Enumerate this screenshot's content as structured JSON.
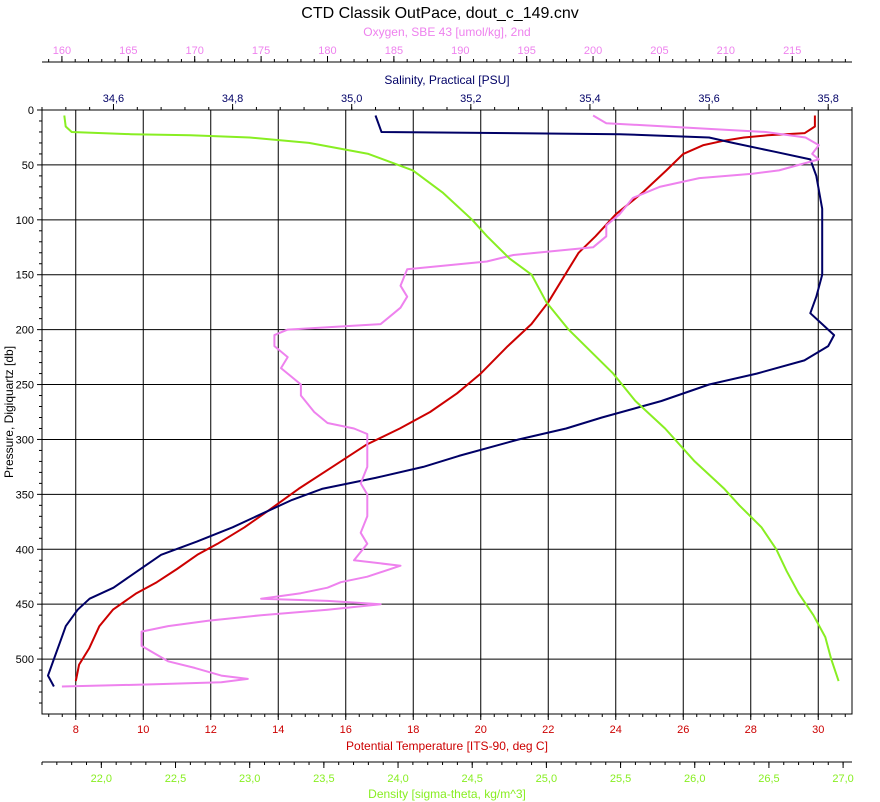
{
  "chart_data": {
    "type": "line",
    "title": "CTD Classik OutPace, dout_c_149.cnv",
    "y_axis": {
      "label": "Pressure, Digiquartz [db]",
      "range": [
        0,
        550
      ],
      "inverted": true,
      "ticks": [
        0,
        50,
        100,
        150,
        200,
        250,
        300,
        350,
        400,
        450,
        500
      ],
      "tick_labels": [
        "0",
        "50",
        "100",
        "150",
        "200",
        "250",
        "300",
        "350",
        "400",
        "450",
        "500"
      ]
    },
    "x_axes": {
      "oxygen": {
        "label": "Oxygen, SBE 43 [umol/kg], 2nd",
        "position": "top",
        "range": [
          158.5,
          219.5
        ],
        "ticks": [
          160,
          165,
          170,
          175,
          180,
          185,
          190,
          195,
          200,
          205,
          210,
          215
        ],
        "tick_labels": [
          "160",
          "165",
          "170",
          "175",
          "180",
          "185",
          "190",
          "195",
          "200",
          "205",
          "210",
          "215"
        ],
        "color": "#ee82ee"
      },
      "salinity": {
        "label": "Salinity, Practical [PSU]",
        "position": "top",
        "range": [
          34.48,
          35.84
        ],
        "ticks": [
          34.6,
          34.8,
          35.0,
          35.2,
          35.4,
          35.6,
          35.8
        ],
        "tick_labels": [
          "34,6",
          "34,8",
          "35,0",
          "35,2",
          "35,4",
          "35,6",
          "35,8"
        ],
        "color": "#000066"
      },
      "temperature": {
        "label": "Potential Temperature [ITS-90, deg C]",
        "position": "bottom",
        "range": [
          7,
          31
        ],
        "ticks": [
          8,
          10,
          12,
          14,
          16,
          18,
          20,
          22,
          24,
          26,
          28,
          30
        ],
        "tick_labels": [
          "8",
          "10",
          "12",
          "14",
          "16",
          "18",
          "20",
          "22",
          "24",
          "26",
          "28",
          "30"
        ],
        "color": "#cc0000"
      },
      "density": {
        "label": "Density [sigma-theta, kg/m^3]",
        "position": "bottom",
        "range": [
          21.6,
          27.06
        ],
        "ticks": [
          22.0,
          22.5,
          23.0,
          23.5,
          24.0,
          24.5,
          25.0,
          25.5,
          26.0,
          26.5,
          27.0
        ],
        "tick_labels": [
          "22,0",
          "22,5",
          "23,0",
          "23,5",
          "24,0",
          "24,5",
          "25,0",
          "25,5",
          "26,0",
          "26,5",
          "27,0"
        ],
        "color": "#88ee22"
      }
    },
    "grid": true,
    "series": [
      {
        "axis": "temperature",
        "color": "#cc0000",
        "points": [
          [
            29.9,
            5
          ],
          [
            29.9,
            15
          ],
          [
            29.6,
            21
          ],
          [
            28.5,
            23
          ],
          [
            27.8,
            25
          ],
          [
            27.2,
            28
          ],
          [
            26.6,
            32
          ],
          [
            26.0,
            40
          ],
          [
            25.5,
            55
          ],
          [
            24.8,
            75
          ],
          [
            24.0,
            95
          ],
          [
            23.4,
            115
          ],
          [
            22.9,
            130
          ],
          [
            22.5,
            150
          ],
          [
            22.0,
            175
          ],
          [
            21.5,
            195
          ],
          [
            20.8,
            215
          ],
          [
            20.0,
            240
          ],
          [
            19.3,
            258
          ],
          [
            18.5,
            275
          ],
          [
            17.6,
            290
          ],
          [
            16.6,
            305
          ],
          [
            15.6,
            325
          ],
          [
            14.6,
            345
          ],
          [
            13.7,
            365
          ],
          [
            13.0,
            380
          ],
          [
            12.2,
            395
          ],
          [
            11.6,
            405
          ],
          [
            11.0,
            418
          ],
          [
            10.4,
            430
          ],
          [
            9.8,
            440
          ],
          [
            9.1,
            455
          ],
          [
            8.7,
            470
          ],
          [
            8.4,
            490
          ],
          [
            8.1,
            505
          ],
          [
            8.0,
            520
          ]
        ]
      },
      {
        "axis": "salinity",
        "color": "#000066",
        "points": [
          [
            35.04,
            5
          ],
          [
            35.05,
            20
          ],
          [
            35.45,
            22
          ],
          [
            35.6,
            25
          ],
          [
            35.64,
            30
          ],
          [
            35.71,
            38
          ],
          [
            35.77,
            45
          ],
          [
            35.78,
            60
          ],
          [
            35.79,
            90
          ],
          [
            35.79,
            120
          ],
          [
            35.79,
            150
          ],
          [
            35.78,
            170
          ],
          [
            35.77,
            185
          ],
          [
            35.79,
            195
          ],
          [
            35.81,
            205
          ],
          [
            35.8,
            215
          ],
          [
            35.76,
            228
          ],
          [
            35.68,
            240
          ],
          [
            35.6,
            250
          ],
          [
            35.52,
            265
          ],
          [
            35.42,
            280
          ],
          [
            35.36,
            290
          ],
          [
            35.28,
            300
          ],
          [
            35.18,
            315
          ],
          [
            35.12,
            325
          ],
          [
            35.04,
            335
          ],
          [
            34.95,
            345
          ],
          [
            34.9,
            355
          ],
          [
            34.86,
            365
          ],
          [
            34.8,
            380
          ],
          [
            34.74,
            393
          ],
          [
            34.68,
            405
          ],
          [
            34.64,
            420
          ],
          [
            34.6,
            435
          ],
          [
            34.56,
            445
          ],
          [
            34.54,
            455
          ],
          [
            34.52,
            470
          ],
          [
            34.51,
            485
          ],
          [
            34.5,
            500
          ],
          [
            34.49,
            515
          ],
          [
            34.5,
            525
          ]
        ]
      },
      {
        "axis": "oxygen",
        "color": "#ee82ee",
        "points": [
          [
            200,
            5
          ],
          [
            201,
            12
          ],
          [
            213,
            20
          ],
          [
            216,
            25
          ],
          [
            217,
            32
          ],
          [
            216.5,
            40
          ],
          [
            217,
            45
          ],
          [
            214,
            55
          ],
          [
            212,
            58
          ],
          [
            208,
            62
          ],
          [
            205,
            70
          ],
          [
            203,
            80
          ],
          [
            202,
            95
          ],
          [
            201,
            105
          ],
          [
            201,
            115
          ],
          [
            200,
            125
          ],
          [
            194,
            132
          ],
          [
            192,
            138
          ],
          [
            186,
            145
          ],
          [
            185.5,
            160
          ],
          [
            186,
            170
          ],
          [
            185.5,
            180
          ],
          [
            185,
            185
          ],
          [
            184,
            195
          ],
          [
            177,
            200
          ],
          [
            176,
            205
          ],
          [
            176,
            215
          ],
          [
            177,
            225
          ],
          [
            176.5,
            235
          ],
          [
            177,
            240
          ],
          [
            178,
            250
          ],
          [
            178,
            260
          ],
          [
            179,
            275
          ],
          [
            180,
            285
          ],
          [
            182,
            290
          ],
          [
            183,
            295
          ],
          [
            183,
            310
          ],
          [
            183,
            325
          ],
          [
            182.5,
            340
          ],
          [
            183,
            350
          ],
          [
            183,
            370
          ],
          [
            182.5,
            385
          ],
          [
            183,
            395
          ],
          [
            182,
            410
          ],
          [
            185.5,
            415
          ],
          [
            183,
            425
          ],
          [
            181,
            430
          ],
          [
            180,
            435
          ],
          [
            178,
            440
          ],
          [
            175,
            445
          ],
          [
            180,
            447
          ],
          [
            184,
            450
          ],
          [
            180,
            455
          ],
          [
            175,
            460
          ],
          [
            171,
            465
          ],
          [
            168,
            470
          ],
          [
            166,
            475
          ],
          [
            166,
            480
          ],
          [
            166,
            488
          ],
          [
            167,
            495
          ],
          [
            168,
            502
          ],
          [
            170,
            508
          ],
          [
            172,
            515
          ],
          [
            174,
            518
          ],
          [
            172,
            521
          ],
          [
            167,
            523
          ],
          [
            160,
            525
          ]
        ]
      },
      {
        "axis": "density",
        "color": "#88ee22",
        "points": [
          [
            21.75,
            5
          ],
          [
            21.76,
            15
          ],
          [
            21.8,
            20
          ],
          [
            22.2,
            22
          ],
          [
            22.6,
            23
          ],
          [
            23.0,
            25
          ],
          [
            23.4,
            30
          ],
          [
            23.8,
            40
          ],
          [
            24.1,
            55
          ],
          [
            24.3,
            75
          ],
          [
            24.5,
            100
          ],
          [
            24.6,
            115
          ],
          [
            24.75,
            135
          ],
          [
            24.9,
            150
          ],
          [
            25.0,
            175
          ],
          [
            25.15,
            200
          ],
          [
            25.3,
            220
          ],
          [
            25.45,
            240
          ],
          [
            25.6,
            265
          ],
          [
            25.8,
            290
          ],
          [
            26.0,
            320
          ],
          [
            26.2,
            345
          ],
          [
            26.3,
            360
          ],
          [
            26.45,
            380
          ],
          [
            26.55,
            400
          ],
          [
            26.62,
            420
          ],
          [
            26.7,
            440
          ],
          [
            26.8,
            460
          ],
          [
            26.88,
            480
          ],
          [
            26.92,
            500
          ],
          [
            26.97,
            520
          ]
        ]
      }
    ]
  }
}
